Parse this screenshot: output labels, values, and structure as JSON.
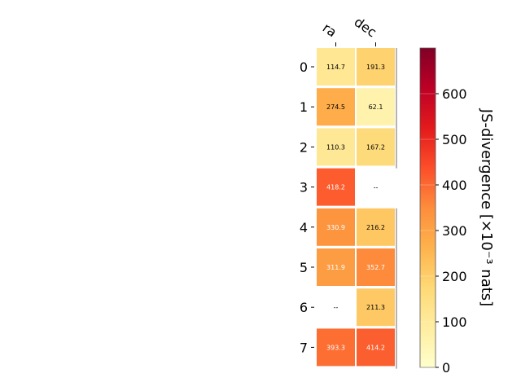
{
  "chart_data": {
    "type": "heatmap",
    "columns": [
      "ra",
      "dec"
    ],
    "rows": [
      "0",
      "1",
      "2",
      "3",
      "4",
      "5",
      "6",
      "7"
    ],
    "values": [
      [
        114.7,
        191.3
      ],
      [
        274.5,
        62.1
      ],
      [
        110.3,
        167.2
      ],
      [
        418.2,
        null
      ],
      [
        330.9,
        216.2
      ],
      [
        311.9,
        352.7
      ],
      [
        null,
        211.3
      ],
      [
        393.3,
        414.2
      ]
    ],
    "cell_labels": [
      [
        "114.7",
        "191.3"
      ],
      [
        "274.5",
        "62.1"
      ],
      [
        "110.3",
        "167.2"
      ],
      [
        "418.2",
        "--"
      ],
      [
        "330.9",
        "216.2"
      ],
      [
        "311.9",
        "352.7"
      ],
      [
        "--",
        "211.3"
      ],
      [
        "393.3",
        "414.2"
      ]
    ],
    "colorbar": {
      "label": "JS-divergence [×10⁻³ nats]",
      "range": [
        0,
        700
      ],
      "ticks": [
        0,
        100,
        200,
        300,
        400,
        500,
        600
      ],
      "tick_labels": [
        "0",
        "100",
        "200",
        "300",
        "400",
        "500",
        "600"
      ],
      "colormap": "YlOrRd"
    },
    "colors": {
      "text_dark": "#000000",
      "text_light": "#ffffff",
      "missing_text": "#000000"
    }
  }
}
